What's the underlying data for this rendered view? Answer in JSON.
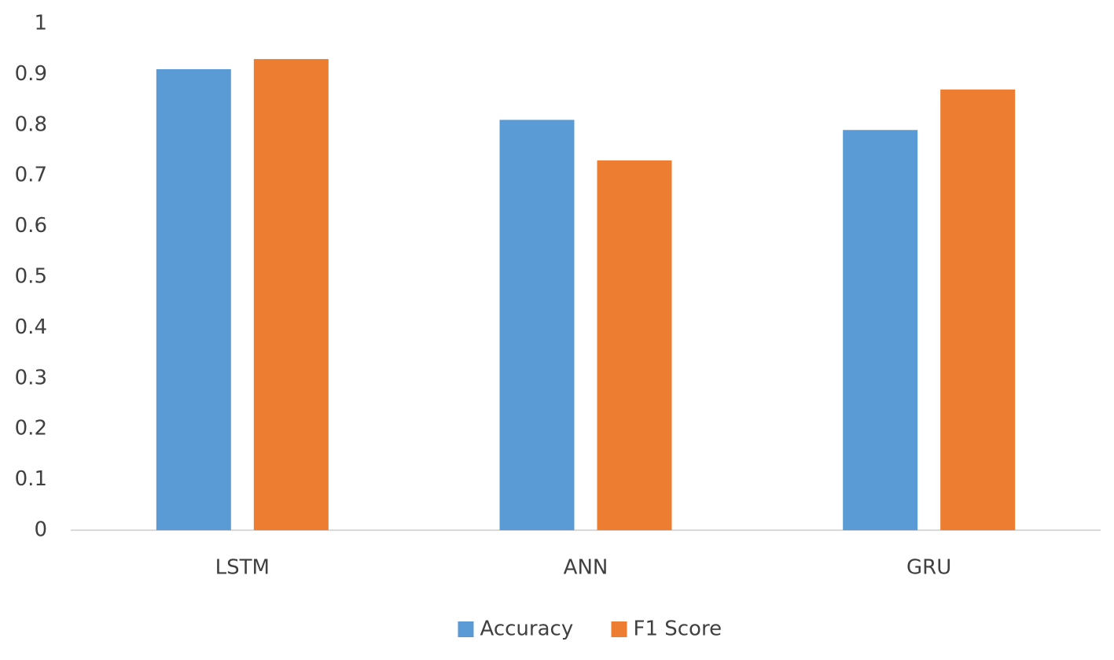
{
  "chart_data": {
    "type": "bar",
    "categories": [
      "LSTM",
      "ANN",
      "GRU"
    ],
    "series": [
      {
        "name": "Accuracy",
        "color": "#5b9bd5",
        "values": [
          0.91,
          0.81,
          0.79
        ]
      },
      {
        "name": "F1 Score",
        "color": "#ed7d31",
        "values": [
          0.93,
          0.73,
          0.87
        ]
      }
    ],
    "ylim": [
      0,
      1
    ],
    "yticks": [
      0,
      0.1,
      0.2,
      0.3,
      0.4,
      0.5,
      0.6,
      0.7,
      0.8,
      0.9,
      1
    ],
    "grid": false,
    "legend": "bottom"
  }
}
